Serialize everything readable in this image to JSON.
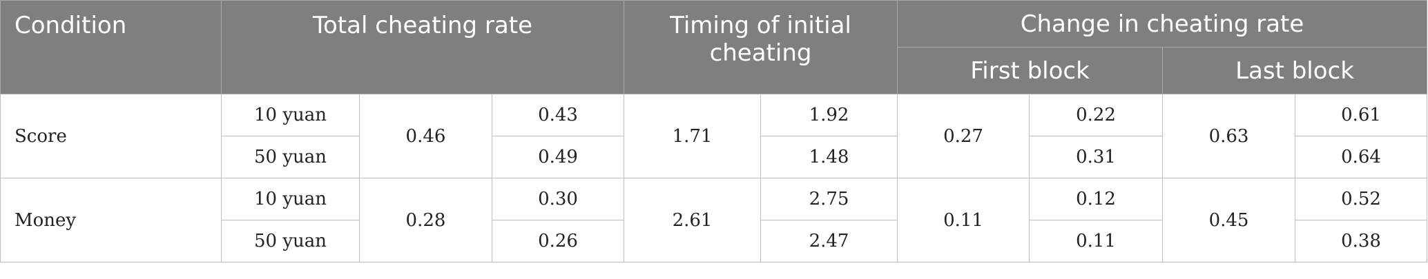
{
  "headers": {
    "condition": "Condition",
    "total_cheating_rate": "Total cheating rate",
    "timing_initial_cheating": "Timing of initial cheating",
    "change_in_cheating_rate": "Change in cheating rate",
    "first_block": "First block",
    "last_block": "Last block"
  },
  "rows": [
    {
      "condition": "Score",
      "total": "0.46",
      "timing": "1.71",
      "first_block": "0.27",
      "last_block": "0.63",
      "sub": [
        {
          "label": "10 yuan",
          "total": "0.43",
          "timing": "1.92",
          "first_block": "0.22",
          "last_block": "0.61"
        },
        {
          "label": "50 yuan",
          "total": "0.49",
          "timing": "1.48",
          "first_block": "0.31",
          "last_block": "0.64"
        }
      ]
    },
    {
      "condition": "Money",
      "total": "0.28",
      "timing": "2.61",
      "first_block": "0.11",
      "last_block": "0.45",
      "sub": [
        {
          "label": "10 yuan",
          "total": "0.30",
          "timing": "2.75",
          "first_block": "0.12",
          "last_block": "0.52"
        },
        {
          "label": "50 yuan",
          "total": "0.26",
          "timing": "2.47",
          "first_block": "0.11",
          "last_block": "0.38"
        }
      ]
    }
  ]
}
